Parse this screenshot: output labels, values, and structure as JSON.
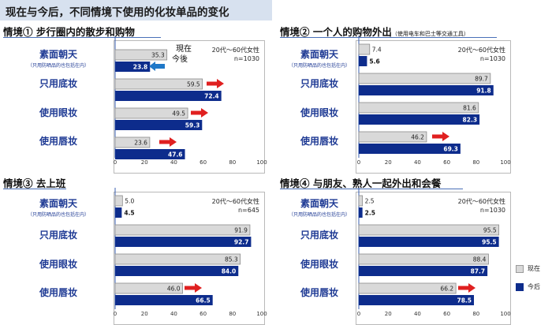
{
  "title": "现在与今后，不同情境下使用的化妆单品的变化",
  "legend": {
    "current": "现在",
    "future": "今后",
    "current_color": "#d9d9d9",
    "future_color": "#0d2c8c"
  },
  "colors": {
    "arrow_red": "#e02020",
    "arrow_blue": "#1f78c8",
    "axis_line": "#3a5fb0",
    "title_bg": "#d7e1ef"
  },
  "annotation": {
    "line1": "現在",
    "line2": "今後"
  },
  "chart_data": [
    {
      "type": "bar",
      "title": "情境① 步行圈内的散步和购物",
      "title_sub": "",
      "sample": "20代～60代女性",
      "sample_n": "n=1030",
      "categories": [
        "素面朝天",
        "只用底妆",
        "使用眼妆",
        "使用唇妆"
      ],
      "category_note": "（只用防晒品的也包括在内）",
      "series": [
        {
          "name": "现在",
          "values": [
            35.3,
            59.5,
            49.5,
            23.6
          ]
        },
        {
          "name": "今后",
          "values": [
            23.8,
            72.4,
            59.3,
            47.6
          ]
        }
      ],
      "ticks": [
        "0",
        "20",
        "40",
        "60",
        "80",
        "100"
      ],
      "ylim": [
        0,
        100
      ]
    },
    {
      "type": "bar",
      "title": "情境② 一个人的购物外出",
      "title_sub": "（使用电车和巴士等交通工具）",
      "sample": "20代～60代女性",
      "sample_n": "n=1030",
      "categories": [
        "素面朝天",
        "只用底妆",
        "使用眼妆",
        "使用唇妆"
      ],
      "category_note": "（只用防晒品的也包括在内）",
      "series": [
        {
          "name": "现在",
          "values": [
            7.4,
            89.7,
            81.6,
            46.2
          ]
        },
        {
          "name": "今后",
          "values": [
            5.6,
            91.8,
            82.3,
            69.3
          ]
        }
      ],
      "ticks": [
        "0",
        "20",
        "40",
        "60",
        "80",
        "100"
      ],
      "ylim": [
        0,
        100
      ]
    },
    {
      "type": "bar",
      "title": "情境③ 去上班",
      "title_sub": "",
      "sample": "20代～60代女性",
      "sample_n": "n=645",
      "categories": [
        "素面朝天",
        "只用底妆",
        "使用眼妆",
        "使用唇妆"
      ],
      "category_note": "（只用防晒品的也包括在内）",
      "series": [
        {
          "name": "现在",
          "values": [
            5.0,
            91.9,
            85.3,
            46.0
          ]
        },
        {
          "name": "今后",
          "values": [
            4.5,
            92.7,
            84.0,
            66.5
          ]
        }
      ],
      "ticks": [
        "0",
        "20",
        "40",
        "60",
        "80",
        "100"
      ],
      "ylim": [
        0,
        100
      ]
    },
    {
      "type": "bar",
      "title": "情境④ 与朋友、熟人一起外出和会餐",
      "title_sub": "",
      "sample": "20代～60代女性",
      "sample_n": "n=1030",
      "categories": [
        "素面朝天",
        "只用底妆",
        "使用眼妆",
        "使用唇妆"
      ],
      "category_note": "（只用防晒品的也包括在内）",
      "series": [
        {
          "name": "现在",
          "values": [
            2.5,
            95.5,
            88.4,
            66.2
          ]
        },
        {
          "name": "今后",
          "values": [
            2.5,
            95.5,
            87.7,
            78.5
          ]
        }
      ],
      "ticks": [
        "0",
        "20",
        "40",
        "60",
        "80",
        "100"
      ],
      "ylim": [
        0,
        100
      ]
    }
  ]
}
